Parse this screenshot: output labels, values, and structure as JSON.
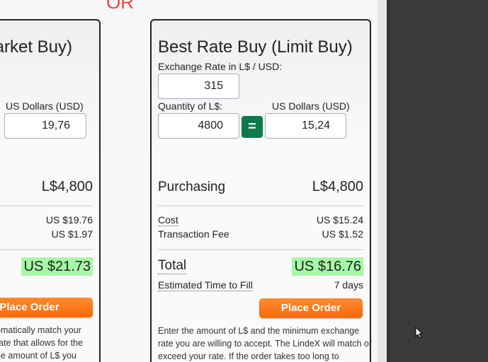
{
  "separator": "OR",
  "market": {
    "title": "arket Buy)",
    "usd_label": "US Dollars (USD)",
    "usd_value": "19,76",
    "purchasing": "L$4,800",
    "cost": "US $19.76",
    "fee": "US $1.97",
    "total": "US $21.73",
    "button": "Place Order",
    "desc": [
      "omatically match your",
      "rate that allows for the",
      "he amount of L$ you"
    ]
  },
  "limit": {
    "title": "Best Rate Buy (Limit Buy)",
    "rate_label": "Exchange Rate in L$ / USD:",
    "rate_value": "315",
    "qty_label": "Quantity of L$:",
    "usd_label": "US Dollars (USD)",
    "qty_value": "4800",
    "equals": "=",
    "usd_value": "15,24",
    "purchasing_label": "Purchasing",
    "purchasing": "L$4,800",
    "cost_label": "Cost",
    "cost": "US $15.24",
    "fee_label": "Transaction Fee",
    "fee": "US $1.52",
    "total_label": "Total",
    "total": "US $16.76",
    "eta_label": "Estimated Time to Fill",
    "eta": "7 days",
    "button": "Place Order",
    "desc": [
      "Enter the amount of L$ and the minimum exchange",
      "rate you are willing to accept. The LindeX will match or",
      "exceed your rate. If the order takes too long to"
    ]
  },
  "colors": {
    "accent_orange": "#f76a0a",
    "highlight_green": "#a6f7a6",
    "equals_green": "#0e7a4a",
    "or_red": "#f2423f"
  }
}
